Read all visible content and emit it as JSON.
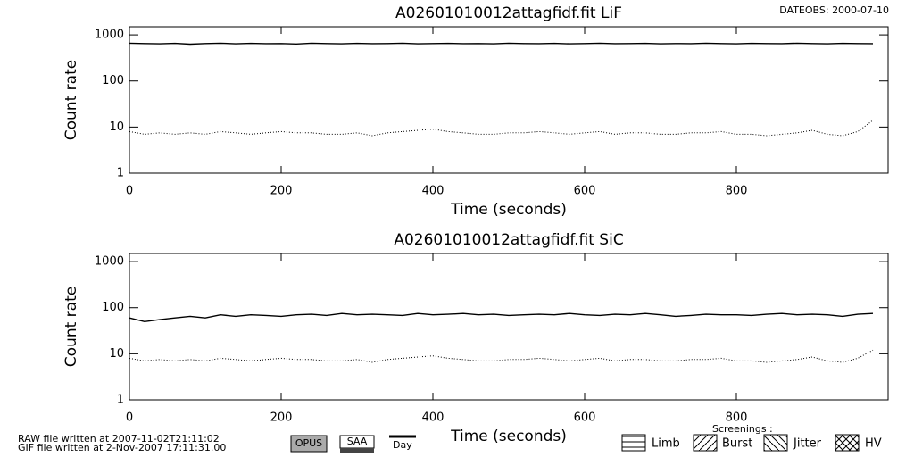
{
  "chart_data": [
    {
      "type": "line",
      "title": "A02601010012attagfidf.fit  LiF",
      "xlabel": "Time (seconds)",
      "ylabel": "Count rate",
      "x": [
        0,
        20,
        40,
        60,
        80,
        100,
        120,
        140,
        160,
        180,
        200,
        220,
        240,
        260,
        280,
        300,
        320,
        340,
        360,
        380,
        400,
        420,
        440,
        460,
        480,
        500,
        520,
        540,
        560,
        580,
        600,
        620,
        640,
        660,
        680,
        700,
        720,
        740,
        760,
        780,
        800,
        820,
        840,
        860,
        880,
        900,
        920,
        940,
        960,
        980
      ],
      "series": [
        {
          "color": "#000000",
          "style": "solid",
          "values": [
            660,
            650,
            640,
            655,
            630,
            650,
            660,
            640,
            655,
            645,
            650,
            635,
            660,
            650,
            640,
            655,
            645,
            650,
            660,
            640,
            650,
            655,
            645,
            650,
            640,
            660,
            650,
            645,
            655,
            640,
            650,
            660,
            645,
            650,
            655,
            640,
            650,
            645,
            660,
            650,
            640,
            655,
            650,
            645,
            660,
            650,
            640,
            655,
            650,
            645
          ]
        },
        {
          "color": "#000000",
          "style": "dotted",
          "values": [
            8,
            7,
            7.5,
            7,
            7.5,
            7,
            8,
            7.5,
            7,
            7.5,
            8,
            7.5,
            7.5,
            7,
            7,
            7.5,
            6.5,
            7.5,
            8,
            8.5,
            9,
            8,
            7.5,
            7,
            7,
            7.5,
            7.5,
            8,
            7.5,
            7,
            7.5,
            8,
            7,
            7.5,
            7.5,
            7,
            7,
            7.5,
            7.5,
            8,
            7,
            7,
            6.5,
            7,
            7.5,
            8.5,
            7,
            6.5,
            8,
            14
          ]
        }
      ],
      "xlim": [
        0,
        1000
      ],
      "xticks": [
        0,
        200,
        400,
        600,
        800
      ],
      "ylim": [
        1,
        1500
      ],
      "yticks": [
        1,
        10,
        100,
        1000
      ],
      "log_y": true
    },
    {
      "type": "line",
      "title": "A02601010012attagfidf.fit  SiC",
      "xlabel": "Time (seconds)",
      "ylabel": "Count rate",
      "x": [
        0,
        20,
        40,
        60,
        80,
        100,
        120,
        140,
        160,
        180,
        200,
        220,
        240,
        260,
        280,
        300,
        320,
        340,
        360,
        380,
        400,
        420,
        440,
        460,
        480,
        500,
        520,
        540,
        560,
        580,
        600,
        620,
        640,
        660,
        680,
        700,
        720,
        740,
        760,
        780,
        800,
        820,
        840,
        860,
        880,
        900,
        920,
        940,
        960,
        980
      ],
      "series": [
        {
          "color": "#000000",
          "style": "solid",
          "values": [
            60,
            50,
            55,
            60,
            65,
            60,
            70,
            65,
            70,
            68,
            65,
            70,
            72,
            68,
            75,
            70,
            72,
            70,
            68,
            75,
            70,
            72,
            75,
            70,
            72,
            68,
            70,
            72,
            70,
            75,
            70,
            68,
            72,
            70,
            75,
            70,
            65,
            68,
            72,
            70,
            70,
            68,
            72,
            75,
            70,
            72,
            70,
            65,
            72,
            75
          ]
        },
        {
          "color": "#000000",
          "style": "dotted",
          "values": [
            8,
            7,
            7.5,
            7,
            7.5,
            7,
            8,
            7.5,
            7,
            7.5,
            8,
            7.5,
            7.5,
            7,
            7,
            7.5,
            6.5,
            7.5,
            8,
            8.5,
            9,
            8,
            7.5,
            7,
            7,
            7.5,
            7.5,
            8,
            7.5,
            7,
            7.5,
            8,
            7,
            7.5,
            7.5,
            7,
            7,
            7.5,
            7.5,
            8,
            7,
            7,
            6.5,
            7,
            7.5,
            8.5,
            7,
            6.5,
            8,
            12
          ]
        }
      ],
      "xlim": [
        0,
        1000
      ],
      "xticks": [
        0,
        200,
        400,
        600,
        800
      ],
      "ylim": [
        1,
        1500
      ],
      "yticks": [
        1,
        10,
        100,
        1000
      ],
      "log_y": true
    }
  ],
  "dateobs": "DATEOBS: 2000-07-10",
  "footer": {
    "raw": "RAW file written at 2007-11-02T21:11:02",
    "gif": "GIF file written at  2-Nov-2007 17:11:31.00",
    "opus": "OPUS",
    "saa": "SAA",
    "day": "Day",
    "screenings": "Screenings :",
    "limb": "Limb",
    "burst": "Burst",
    "jitter": "Jitter",
    "hv": "HV"
  }
}
